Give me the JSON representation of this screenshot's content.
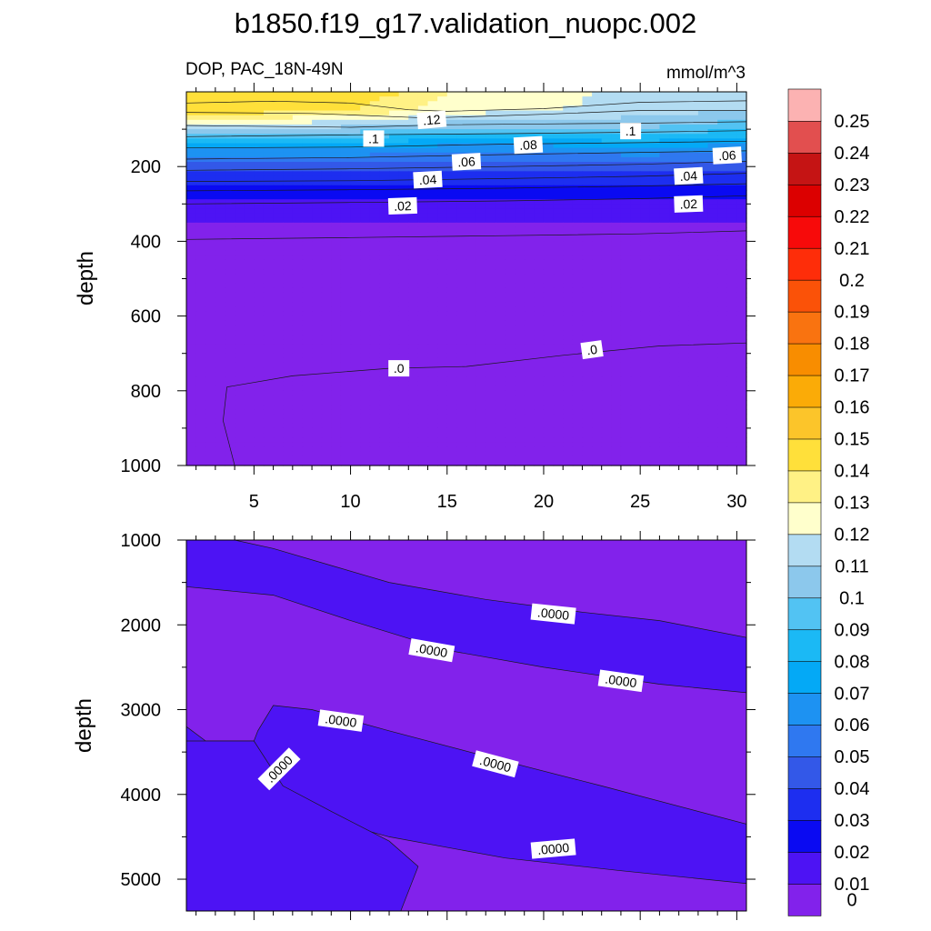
{
  "title": "b1850.f19_g17.validation_nuopc.002",
  "subtitle_left": "DOP, PAC_18N-49N",
  "units": "mmol/m^3",
  "colorbar": {
    "levels": [
      "0",
      "0.01",
      "0.02",
      "0.03",
      "0.04",
      "0.05",
      "0.06",
      "0.07",
      "0.08",
      "0.09",
      "0.1",
      "0.11",
      "0.12",
      "0.13",
      "0.14",
      "0.15",
      "0.16",
      "0.17",
      "0.18",
      "0.19",
      "0.2",
      "0.21",
      "0.22",
      "0.23",
      "0.24",
      "0.25"
    ],
    "colors": [
      "#8222eb",
      "#4d13f4",
      "#0a0af2",
      "#1d2ef0",
      "#3358e8",
      "#2f78f0",
      "#1d92f2",
      "#04a9f6",
      "#1bb9f5",
      "#52c3f3",
      "#8cc8ec",
      "#b3dcf2",
      "#ffffcc",
      "#fff185",
      "#ffe03a",
      "#fcc52a",
      "#fbab07",
      "#f88d00",
      "#f97310",
      "#fb5208",
      "#fe2d09",
      "#f70a0a",
      "#dc0000",
      "#c51414",
      "#e24f4f",
      "#fcb2b2"
    ]
  },
  "chart_data": [
    {
      "type": "heatmap",
      "panel": "upper",
      "x": [
        2,
        5,
        10,
        15,
        20,
        25,
        30.5
      ],
      "xticklabels": [
        "5",
        "10",
        "15",
        "20",
        "25",
        "30"
      ],
      "xticks": [
        5,
        10,
        15,
        20,
        25,
        30
      ],
      "xlim": [
        1.5,
        30.5
      ],
      "ylabel": "depth",
      "ylim": [
        0,
        1000
      ],
      "yticks": [
        200,
        400,
        600,
        800,
        1000
      ],
      "yticklabels": [
        "200",
        "400",
        "600",
        "800",
        "1000"
      ],
      "depth": [
        0,
        50,
        100,
        150,
        200,
        250,
        300,
        400,
        600,
        800,
        1000
      ],
      "values": [
        [
          0.15,
          0.15,
          0.15,
          0.13,
          0.13,
          0.11,
          0.11
        ],
        [
          0.145,
          0.145,
          0.14,
          0.125,
          0.12,
          0.115,
          0.11
        ],
        [
          0.11,
          0.11,
          0.105,
          0.1,
          0.1,
          0.1,
          0.09
        ],
        [
          0.07,
          0.07,
          0.07,
          0.065,
          0.065,
          0.07,
          0.065
        ],
        [
          0.045,
          0.045,
          0.045,
          0.045,
          0.045,
          0.045,
          0.045
        ],
        [
          0.03,
          0.03,
          0.03,
          0.03,
          0.03,
          0.03,
          0.03
        ],
        [
          0.015,
          0.015,
          0.015,
          0.015,
          0.015,
          0.015,
          0.015
        ],
        [
          0.006,
          0.006,
          0.006,
          0.006,
          0.006,
          0.006,
          0.006
        ],
        [
          0.004,
          0.004,
          0.004,
          0.004,
          0.004,
          0.004,
          0.004
        ],
        [
          0.0,
          0.0,
          0.0,
          0.0,
          0.0,
          0.0,
          0.0
        ],
        [
          0.0,
          0.0,
          0.0,
          0.0,
          0.0,
          0.0,
          0.0
        ]
      ],
      "contour_labels": [
        {
          "text": ".12",
          "x": 14.2,
          "y": 75
        },
        {
          "text": ".1",
          "x": 11.2,
          "y": 125
        },
        {
          "text": ".1",
          "x": 24.5,
          "y": 105
        },
        {
          "text": ".08",
          "x": 19.2,
          "y": 142
        },
        {
          "text": ".06",
          "x": 16.0,
          "y": 187
        },
        {
          "text": ".06",
          "x": 29.5,
          "y": 170
        },
        {
          "text": ".04",
          "x": 14.0,
          "y": 235
        },
        {
          "text": ".04",
          "x": 27.5,
          "y": 225
        },
        {
          "text": ".02",
          "x": 12.7,
          "y": 305
        },
        {
          "text": ".02",
          "x": 27.5,
          "y": 300
        },
        {
          "text": ".0",
          "x": 12.5,
          "y": 740
        },
        {
          "text": ".0",
          "x": 22.5,
          "y": 690
        }
      ]
    },
    {
      "type": "heatmap",
      "panel": "lower",
      "xlim": [
        1.5,
        30.5
      ],
      "ylabel": "depth",
      "ylim": [
        1000,
        5375
      ],
      "yticks": [
        1000,
        2000,
        3000,
        4000,
        5000
      ],
      "yticklabels": [
        "1000",
        "2000",
        "3000",
        "4000",
        "5000"
      ],
      "contour_labels": [
        {
          "text": ".0000",
          "x": 20.5,
          "y": 1870
        },
        {
          "text": ".0000",
          "x": 14.2,
          "y": 2300
        },
        {
          "text": ".0000",
          "x": 24.0,
          "y": 2660
        },
        {
          "text": ".0000",
          "x": 9.5,
          "y": 3130
        },
        {
          "text": ".0000",
          "x": 6.3,
          "y": 3700
        },
        {
          "text": ".0000",
          "x": 17.5,
          "y": 3640
        },
        {
          "text": ".0000",
          "x": 20.5,
          "y": 4640
        }
      ]
    }
  ]
}
